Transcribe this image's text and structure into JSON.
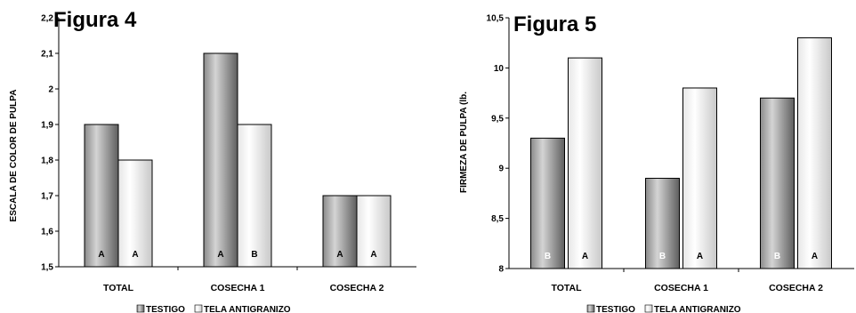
{
  "legend_labels": [
    "TESTIGO",
    "TELA ANTIGRANIZO"
  ],
  "colors": {
    "testigo_light": "#d4d4d4",
    "testigo_dark": "#6a6a6a",
    "tela_light": "#ffffff",
    "tela_dark": "#c8c8c8"
  },
  "chart_data": [
    {
      "type": "bar",
      "title": "Figura 4",
      "ylabel": "ESCALA DE COLOR DE PULPA",
      "categories": [
        "TOTAL",
        "COSECHA 1",
        "COSECHA 2"
      ],
      "ylim": [
        1.5,
        2.2
      ],
      "yticks": [
        "1,5",
        "1,6",
        "1,7",
        "1,8",
        "1,9",
        "2",
        "2,1",
        "2,2"
      ],
      "series": [
        {
          "name": "TESTIGO",
          "values": [
            1.9,
            2.1,
            1.7
          ],
          "letters": [
            "A",
            "A",
            "A"
          ]
        },
        {
          "name": "TELA ANTIGRANIZO",
          "values": [
            1.8,
            1.9,
            1.7
          ],
          "letters": [
            "A",
            "B",
            "A"
          ]
        }
      ],
      "legend": "bottom"
    },
    {
      "type": "bar",
      "title": "Figura 5",
      "ylabel": "FIRMEZA DE PULPA (lb.",
      "categories": [
        "TOTAL",
        "COSECHA 1",
        "COSECHA 2"
      ],
      "ylim": [
        8,
        10.5
      ],
      "yticks": [
        "8",
        "8,5",
        "9",
        "9,5",
        "10",
        "10,5"
      ],
      "series": [
        {
          "name": "TESTIGO",
          "values": [
            9.3,
            8.9,
            9.7
          ],
          "letters": [
            "B",
            "B",
            "B"
          ]
        },
        {
          "name": "TELA ANTIGRANIZO",
          "values": [
            10.1,
            9.8,
            10.3
          ],
          "letters": [
            "A",
            "A",
            "A"
          ]
        }
      ],
      "legend": "bottom"
    }
  ]
}
